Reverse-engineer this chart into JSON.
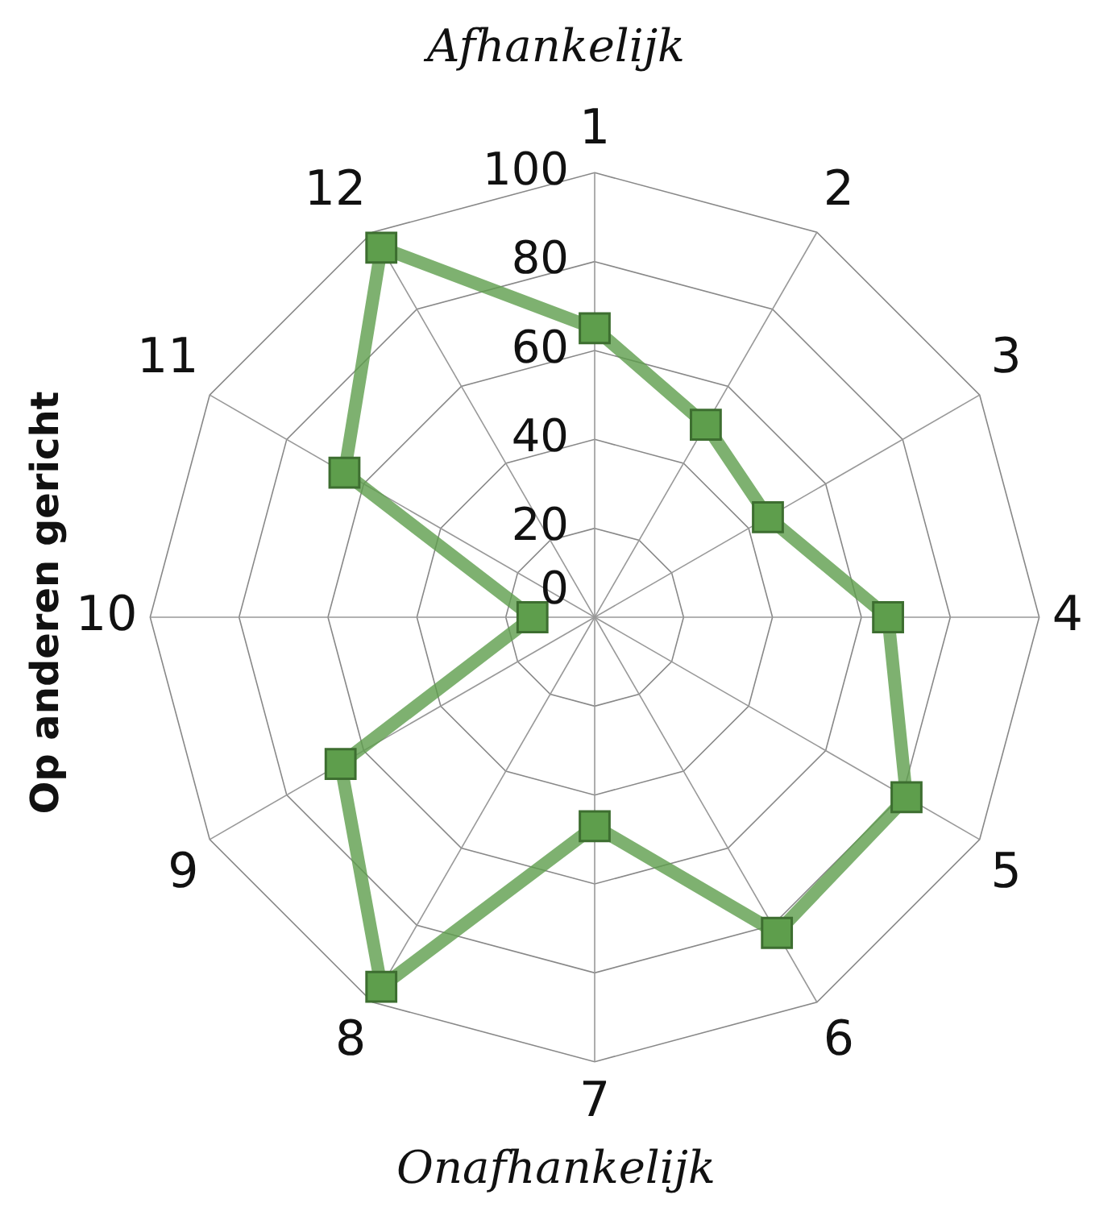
{
  "chart_data": {
    "type": "radar",
    "categories": [
      "1",
      "2",
      "3",
      "4",
      "5",
      "6",
      "7",
      "8",
      "9",
      "10",
      "11",
      "12"
    ],
    "series": [
      {
        "color": "#5e9e4c",
        "values": [
          65,
          50,
          45,
          66,
          81,
          82,
          47,
          96,
          66,
          14,
          65,
          96
        ]
      }
    ],
    "ylim": [
      0,
      100
    ],
    "yticks": [
      0,
      20,
      40,
      60,
      80,
      100
    ],
    "grid": true,
    "legend": false,
    "marker": "square",
    "line_style": "solid",
    "annotations": [
      "Afhankelijk",
      "Onafhankelijk",
      "Op anderen gericht"
    ]
  }
}
